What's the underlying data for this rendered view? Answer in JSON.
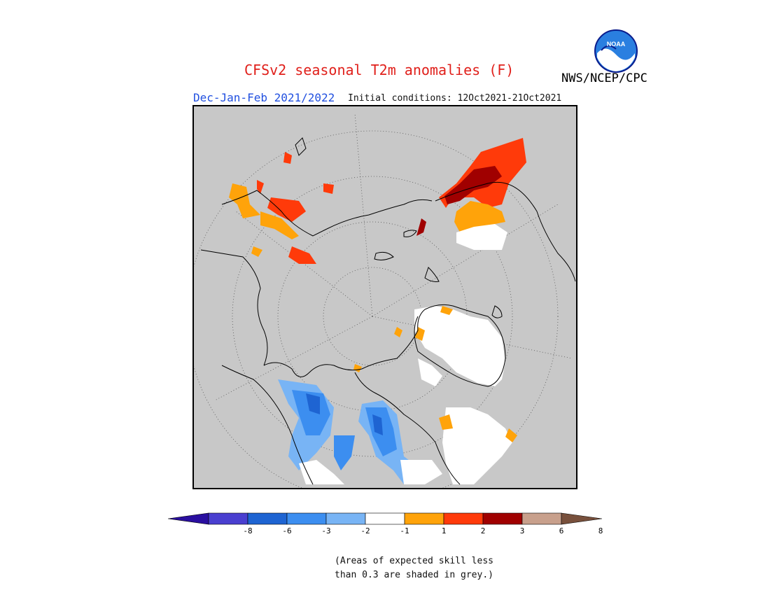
{
  "title": "CFSv2 seasonal T2m anomalies (F)",
  "agency": "NWS/NCEP/CPC",
  "logo_text": "NOAA",
  "season": "Dec-Jan-Feb 2021/2022",
  "initial_conditions": "Initial conditions: 12Oct2021-21Oct2021",
  "colorbar": {
    "ticks": [
      "-8",
      "-6",
      "-3",
      "-2",
      "-1",
      "1",
      "2",
      "3",
      "6",
      "8"
    ],
    "colors": [
      "#2a0fa0",
      "#4a3fd0",
      "#1e64d2",
      "#3c8ef0",
      "#78b4f5",
      "#ffffff",
      "#ffa30a",
      "#ff3a0a",
      "#a00000",
      "#c8a08c",
      "#78503c"
    ]
  },
  "note": "(Areas of expected skill less\nthan 0.3 are shaded in grey.)",
  "legend_colors": {
    "background": "#c8c8c8",
    "warm1": "#ffa30a",
    "warm2": "#ff3a0a",
    "warm3": "#a00000",
    "cool1": "#78b4f5",
    "cool2": "#3c8ef0",
    "cool3": "#1e64d2",
    "neutral": "#ffffff"
  }
}
